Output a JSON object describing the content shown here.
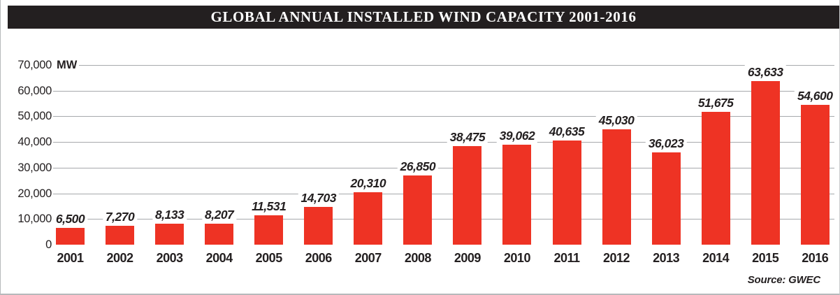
{
  "title": "GLOBAL ANNUAL INSTALLED WIND CAPACITY 2001-2016",
  "source": "Source: GWEC",
  "colors": {
    "bar": "#ee3324",
    "title_bg": "#231f20",
    "title_text": "#ffffff",
    "gridline": "#a7a9ac",
    "text": "#231f20",
    "frame_border": "#b7b9bb"
  },
  "chart_data": {
    "type": "bar",
    "title": "GLOBAL ANNUAL INSTALLED WIND CAPACITY 2001-2016",
    "categories": [
      "2001",
      "2002",
      "2003",
      "2004",
      "2005",
      "2006",
      "2007",
      "2008",
      "2009",
      "2010",
      "2011",
      "2012",
      "2013",
      "2014",
      "2015",
      "2016"
    ],
    "values": [
      6500,
      7270,
      8133,
      8207,
      11531,
      14703,
      20310,
      26850,
      38475,
      39062,
      40635,
      45030,
      36023,
      51675,
      63633,
      54600
    ],
    "value_labels": [
      "6,500",
      "7,270",
      "8,133",
      "8,207",
      "11,531",
      "14,703",
      "20,310",
      "26,850",
      "38,475",
      "39,062",
      "40,635",
      "45,030",
      "36,023",
      "51,675",
      "63,633",
      "54,600"
    ],
    "xlabel": "",
    "ylabel": "MW",
    "ylim": [
      0,
      70000
    ],
    "ytick_interval": 10000,
    "ytick_labels": [
      "0",
      "10,000",
      "20,000",
      "30,000",
      "40,000",
      "50,000",
      "60,000",
      "70,000"
    ],
    "grid": true,
    "legend_position": "none",
    "source": "Source: GWEC"
  }
}
